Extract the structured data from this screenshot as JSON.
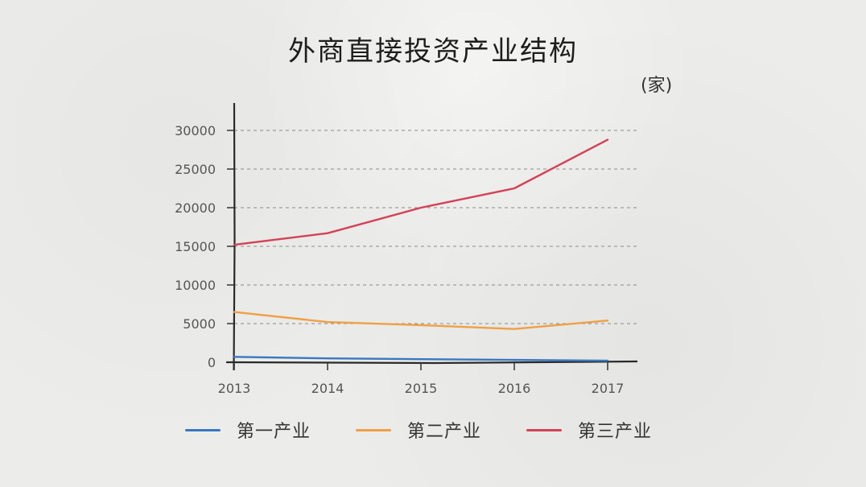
{
  "chart_data": {
    "type": "line",
    "title": "外商直接投资产业结构",
    "unit": "(家)",
    "x": [
      "2013",
      "2014",
      "2015",
      "2016",
      "2017"
    ],
    "ylim": [
      0,
      30000
    ],
    "yticks": [
      "0",
      "5000",
      "10000",
      "15000",
      "20000",
      "25000",
      "30000"
    ],
    "grid": true,
    "legend_position": "bottom",
    "series": [
      {
        "name": "第一产业",
        "color": "#3a78c0",
        "values": [
          700,
          500,
          400,
          300,
          200
        ]
      },
      {
        "name": "第二产业",
        "color": "#f0a044",
        "values": [
          6500,
          5200,
          4800,
          4300,
          5400
        ]
      },
      {
        "name": "第三产业",
        "color": "#d44256",
        "values": [
          15200,
          16700,
          20000,
          22500,
          28800
        ]
      }
    ]
  }
}
